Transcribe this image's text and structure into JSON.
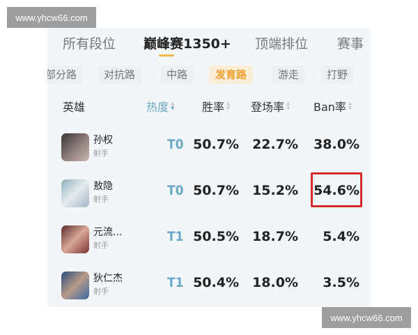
{
  "watermarks": [
    "www.yhcw66.com",
    "www.yhcw66.com"
  ],
  "tabs": [
    {
      "label": "所有段位"
    },
    {
      "label": "巅峰赛1350+",
      "active": true
    },
    {
      "label": "顶端排位"
    },
    {
      "label": "赛事"
    }
  ],
  "lanes": [
    {
      "label": "部分路"
    },
    {
      "label": "对抗路"
    },
    {
      "label": "中路"
    },
    {
      "label": "发育路",
      "active": true
    },
    {
      "label": "游走"
    },
    {
      "label": "打野"
    }
  ],
  "headers": {
    "hero": "英雄",
    "heat": "热度",
    "win": "胜率",
    "pick": "登场率",
    "ban": "Ban率"
  },
  "colors": {
    "accent": "#f0a030",
    "tier": "#6aa9c6",
    "highlight": "#d42a2a"
  },
  "rows": [
    {
      "name": "孙权",
      "role": "射手",
      "tier": "T0",
      "win": "50.7%",
      "pick": "22.7%",
      "ban": "38.0%"
    },
    {
      "name": "敖隐",
      "role": "射手",
      "tier": "T0",
      "win": "50.7%",
      "pick": "15.2%",
      "ban": "54.6%",
      "highlighted": true
    },
    {
      "name": "元流...",
      "role": "射手",
      "tier": "T1",
      "win": "50.5%",
      "pick": "18.7%",
      "ban": "5.4%"
    },
    {
      "name": "狄仁杰",
      "role": "射手",
      "tier": "T1",
      "win": "50.4%",
      "pick": "18.0%",
      "ban": "3.5%"
    }
  ]
}
